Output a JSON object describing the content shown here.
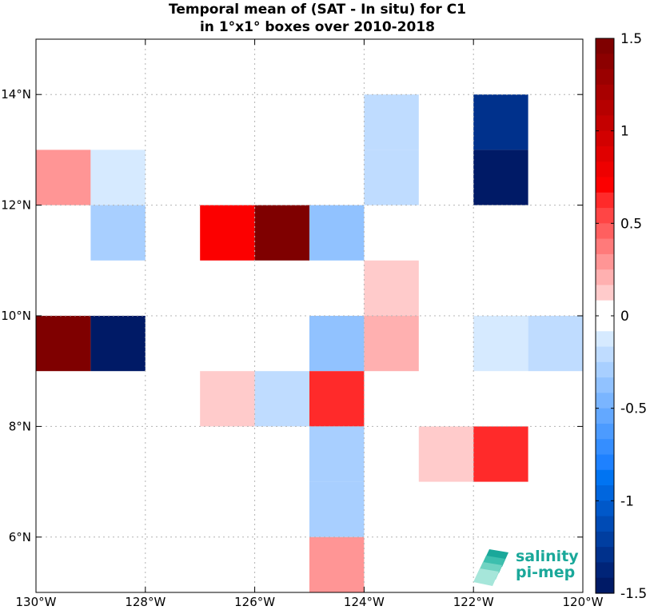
{
  "chart_data": {
    "type": "heatmap",
    "title": "Temporal mean of (SAT - In situ) for C1",
    "subtitle": "in 1°x1° boxes over 2010-2018",
    "xlim": [
      -130,
      -120
    ],
    "ylim": [
      5,
      15
    ],
    "grid": true,
    "x_ticks": [
      {
        "value": -130,
        "label": "130°W"
      },
      {
        "value": -128,
        "label": "128°W"
      },
      {
        "value": -126,
        "label": "126°W"
      },
      {
        "value": -124,
        "label": "124°W"
      },
      {
        "value": -122,
        "label": "122°W"
      },
      {
        "value": -120,
        "label": "120°W"
      }
    ],
    "y_ticks": [
      {
        "value": 6,
        "label": "6°N"
      },
      {
        "value": 8,
        "label": "8°N"
      },
      {
        "value": 10,
        "label": "10°N"
      },
      {
        "value": 12,
        "label": "12°N"
      },
      {
        "value": 14,
        "label": "14°N"
      }
    ],
    "cells": [
      {
        "lon": -130,
        "lat": 12,
        "value": 0.3
      },
      {
        "lon": -129,
        "lat": 12,
        "value": -0.1
      },
      {
        "lon": -129,
        "lat": 11,
        "value": -0.3
      },
      {
        "lon": -127,
        "lat": 11,
        "value": 0.7
      },
      {
        "lon": -126,
        "lat": 11,
        "value": 1.5
      },
      {
        "lon": -125,
        "lat": 11,
        "value": -0.35
      },
      {
        "lon": -124,
        "lat": 13,
        "value": -0.2
      },
      {
        "lon": -124,
        "lat": 12,
        "value": -0.2
      },
      {
        "lon": -122,
        "lat": 13,
        "value": -1.3
      },
      {
        "lon": -122,
        "lat": 12,
        "value": -1.5
      },
      {
        "lon": -124,
        "lat": 10,
        "value": 0.1
      },
      {
        "lon": -130,
        "lat": 9,
        "value": 1.5
      },
      {
        "lon": -129,
        "lat": 9,
        "value": -1.5
      },
      {
        "lon": -125,
        "lat": 9,
        "value": -0.35
      },
      {
        "lon": -124,
        "lat": 9,
        "value": 0.25
      },
      {
        "lon": -122,
        "lat": 9,
        "value": -0.1
      },
      {
        "lon": -121,
        "lat": 9,
        "value": -0.2
      },
      {
        "lon": -127,
        "lat": 8,
        "value": 0.1
      },
      {
        "lon": -126,
        "lat": 8,
        "value": -0.2
      },
      {
        "lon": -125,
        "lat": 8,
        "value": 0.6
      },
      {
        "lon": -125,
        "lat": 7,
        "value": -0.3
      },
      {
        "lon": -125,
        "lat": 6,
        "value": -0.3
      },
      {
        "lon": -125,
        "lat": 5,
        "value": 0.3
      },
      {
        "lon": -123,
        "lat": 7,
        "value": 0.1
      },
      {
        "lon": -122,
        "lat": 7,
        "value": 0.6
      }
    ],
    "colorbar": {
      "min": -1.5,
      "max": 1.5,
      "ticks": [
        {
          "value": 1.5,
          "label": "1.5"
        },
        {
          "value": 1.0,
          "label": "1"
        },
        {
          "value": 0.5,
          "label": "0.5"
        },
        {
          "value": 0.0,
          "label": "0"
        },
        {
          "value": -0.5,
          "label": "-0.5"
        },
        {
          "value": -1.0,
          "label": "-1"
        },
        {
          "value": -1.5,
          "label": "-1.5"
        }
      ],
      "colors_top_to_bottom": [
        "#7f0000",
        "#8c0000",
        "#9a0000",
        "#a80000",
        "#b60000",
        "#c40000",
        "#d20000",
        "#e00000",
        "#ee0000",
        "#fc0000",
        "#ff2a2a",
        "#ff4545",
        "#ff5f5f",
        "#ff7a7a",
        "#ff9595",
        "#ffb0b0",
        "#ffcbcb",
        "#ffffff",
        "#ffffff",
        "#d6eaff",
        "#bfdcff",
        "#a8cfff",
        "#91c2ff",
        "#7ab5ff",
        "#63a8ff",
        "#4c9bff",
        "#358eff",
        "#1e81ff",
        "#0074f2",
        "#0066de",
        "#0058c9",
        "#004bb5",
        "#003ea0",
        "#00318c",
        "#002478",
        "#001a66"
      ]
    },
    "logo": {
      "line1": "salinity",
      "line2": "pi-mep"
    }
  }
}
